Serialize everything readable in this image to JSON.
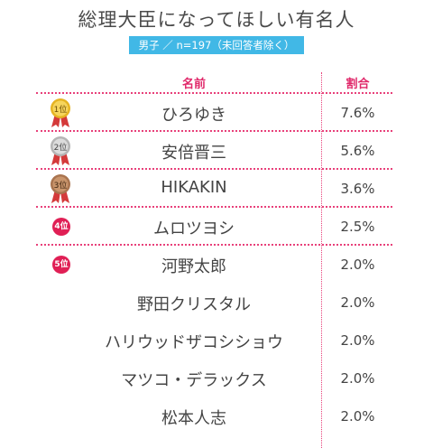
{
  "title": "総理大臣になってほしい有名人",
  "subtitle": "男子 ／ n=197（未回答者除く）",
  "header": {
    "name": "名前",
    "pct": "割合"
  },
  "rows": [
    {
      "rank": "1位",
      "name": "ひろゆき",
      "pct": "7.6%",
      "medal": "gold"
    },
    {
      "rank": "2位",
      "name": "安倍晋三",
      "pct": "5.6%",
      "medal": "silver"
    },
    {
      "rank": "3位",
      "name": "HIKAKIN",
      "pct": "3.6%",
      "medal": "bronze"
    },
    {
      "rank": "4位",
      "name": "ムロツヨシ",
      "pct": "2.5%"
    },
    {
      "rank": "5位",
      "name": "河野太郎",
      "pct": "2.0%"
    },
    {
      "name": "野田クリスタル",
      "pct": "2.0%"
    },
    {
      "name": "ハリウッドザコシショウ",
      "pct": "2.0%"
    },
    {
      "name": "マツコ・デラックス",
      "pct": "2.0%"
    },
    {
      "name": "松本人志",
      "pct": "2.0%"
    }
  ],
  "colors": {
    "accent": "#e0286a",
    "subtitle_bg": "#41b8e6",
    "gold": "#e6b422",
    "silver": "#b5b5b5",
    "bronze": "#a9744f",
    "ribbon": "#d43a3a"
  }
}
